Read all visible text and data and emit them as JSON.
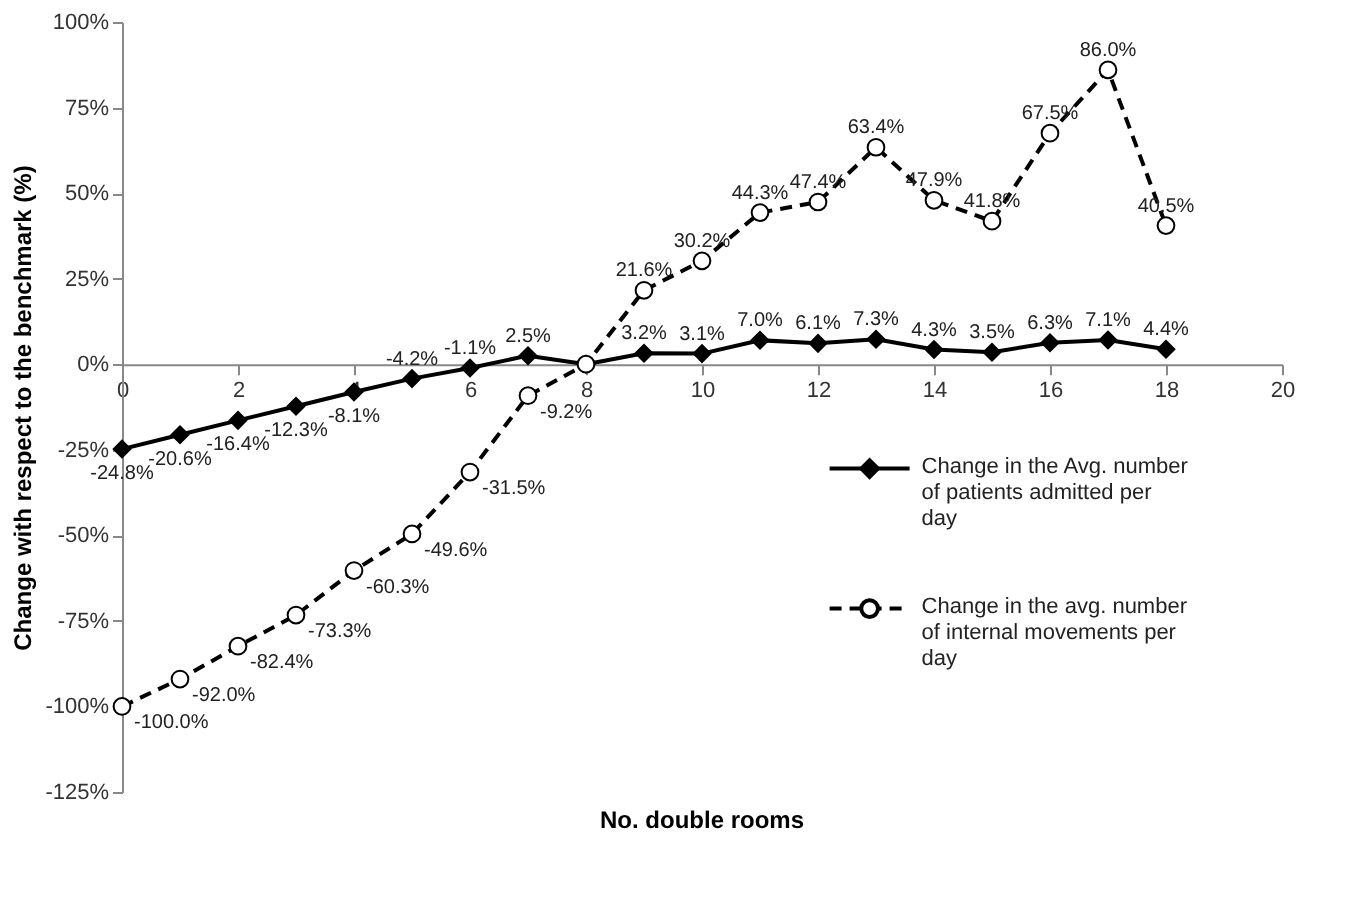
{
  "chart_data": {
    "type": "line",
    "xlabel": "No. double rooms",
    "ylabel": "Change with respect to the benchmark (%)",
    "x": [
      0,
      1,
      2,
      3,
      4,
      5,
      6,
      7,
      8,
      9,
      10,
      11,
      12,
      13,
      14,
      15,
      16,
      17,
      18
    ],
    "series": [
      {
        "name": "Change in the Avg. number of patients admitted per day",
        "color": "#000000",
        "marker": "diamond",
        "line_style": "solid",
        "values": [
          -24.8,
          -20.6,
          -16.4,
          -12.3,
          -8.1,
          -4.2,
          -1.1,
          2.5,
          0,
          3.2,
          3.1,
          7.0,
          6.1,
          7.3,
          4.3,
          3.5,
          6.3,
          7.1,
          4.4
        ],
        "value_labels": [
          "-24.8%",
          "-20.6%",
          "-16.4%",
          "-12.3%",
          "-8.1%",
          "-4.2%",
          "-1.1%",
          "2.5%",
          null,
          "3.2%",
          "3.1%",
          "7.0%",
          "6.1%",
          "7.3%",
          "4.3%",
          "3.5%",
          "6.3%",
          "7.1%",
          "4.4%"
        ]
      },
      {
        "name": "Change in the avg. number of internal movements per day",
        "color": "#000000",
        "marker": "circle",
        "line_style": "dashed",
        "values": [
          -100.0,
          -92.0,
          -82.4,
          -73.3,
          -60.3,
          -49.6,
          -31.5,
          -9.2,
          0,
          21.6,
          30.2,
          44.3,
          47.4,
          63.4,
          47.9,
          41.8,
          67.5,
          86.0,
          40.5
        ],
        "value_labels": [
          "-100.0%",
          "-92.0%",
          "-82.4%",
          "-73.3%",
          "-60.3%",
          "-49.6%",
          "-31.5%",
          "-9.2%",
          null,
          "21.6%",
          "30.2%",
          "44.3%",
          "47.4%",
          "63.4%",
          "47.9%",
          "41.8%",
          "67.5%",
          "86.0%",
          "40.5%"
        ]
      }
    ],
    "xlim": [
      0,
      20
    ],
    "xticks": [
      0,
      2,
      4,
      6,
      8,
      10,
      12,
      14,
      16,
      18,
      20
    ],
    "ylim": [
      -125,
      100
    ],
    "yticks": [
      {
        "value": -125,
        "label": "-125%"
      },
      {
        "value": -100,
        "label": "-100%"
      },
      {
        "value": -75,
        "label": "-75%"
      },
      {
        "value": -50,
        "label": "-50%"
      },
      {
        "value": -25,
        "label": "-25%"
      },
      {
        "value": 0,
        "label": "0%"
      },
      {
        "value": 25,
        "label": "25%"
      },
      {
        "value": 50,
        "label": "50%"
      },
      {
        "value": 75,
        "label": "75%"
      },
      {
        "value": 100,
        "label": "100%"
      }
    ],
    "grid": false,
    "legend": "right"
  }
}
